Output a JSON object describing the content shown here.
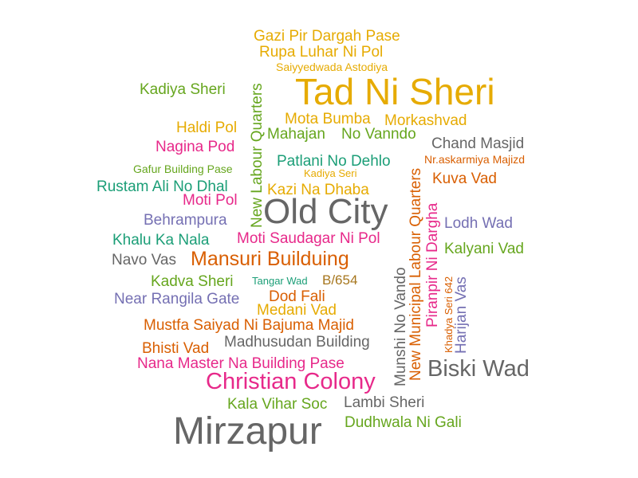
{
  "words": [
    {
      "text": "Gazi Pir Dargah Pase",
      "color": "#e6ab02"
    },
    {
      "text": "Rupa Luhar Ni Pol",
      "color": "#e6ab02"
    },
    {
      "text": "Saiyyedwada Astodiya",
      "color": "#e6ab02"
    },
    {
      "text": "Tad Ni Sheri",
      "color": "#e6ab02"
    },
    {
      "text": "Kadiya Sheri",
      "color": "#66a61e"
    },
    {
      "text": "New Labour Quarters",
      "color": "#66a61e"
    },
    {
      "text": "Mota Bumba",
      "color": "#e6ab02"
    },
    {
      "text": "Morkashvad",
      "color": "#e6ab02"
    },
    {
      "text": "Mahajan",
      "color": "#66a61e"
    },
    {
      "text": "No Vanndo",
      "color": "#66a61e"
    },
    {
      "text": "Haldi Pol",
      "color": "#e6ab02"
    },
    {
      "text": "Chand Masjid",
      "color": "#666666"
    },
    {
      "text": "Nagina Pod",
      "color": "#e7298a"
    },
    {
      "text": "Patlani No Dehlo",
      "color": "#1b9e77"
    },
    {
      "text": "Nr.askarmiya Majizd",
      "color": "#d95f02"
    },
    {
      "text": "Gafur Building Pase",
      "color": "#66a61e"
    },
    {
      "text": "Kadiya Seri",
      "color": "#e6ab02"
    },
    {
      "text": "Rustam Ali No Dhal",
      "color": "#1b9e77"
    },
    {
      "text": "Kazi Na Dhaba",
      "color": "#e6ab02"
    },
    {
      "text": "Kuva Vad",
      "color": "#d95f02"
    },
    {
      "text": "New Municipal Labour Quarters",
      "color": "#d95f02"
    },
    {
      "text": "Piranpir Ni Dargha",
      "color": "#e7298a"
    },
    {
      "text": "Moti Pol",
      "color": "#e7298a"
    },
    {
      "text": "Old City",
      "color": "#666666"
    },
    {
      "text": "Behrampura",
      "color": "#7570b3"
    },
    {
      "text": "Lodh Wad",
      "color": "#7570b3"
    },
    {
      "text": "Khalu Ka Nala",
      "color": "#1b9e77"
    },
    {
      "text": "Moti Saudagar Ni Pol",
      "color": "#e7298a"
    },
    {
      "text": "Kalyani Vad",
      "color": "#66a61e"
    },
    {
      "text": "Navo Vas",
      "color": "#666666"
    },
    {
      "text": "Mansuri Builduing",
      "color": "#d95f02"
    },
    {
      "text": "Munshi No Vando",
      "color": "#666666"
    },
    {
      "text": "Khadya Seri 642",
      "color": "#d95f02"
    },
    {
      "text": "Harijan Vas",
      "color": "#7570b3"
    },
    {
      "text": "Kadva Sheri",
      "color": "#66a61e"
    },
    {
      "text": "Tangar Wad",
      "color": "#1b9e77"
    },
    {
      "text": "B/654",
      "color": "#a6761d"
    },
    {
      "text": "Near Rangila Gate",
      "color": "#7570b3"
    },
    {
      "text": "Dod Fali",
      "color": "#d95f02"
    },
    {
      "text": "Medani Vad",
      "color": "#e6ab02"
    },
    {
      "text": "Mustfa Saiyad Ni Bajuma Majid",
      "color": "#d95f02"
    },
    {
      "text": "Bhisti Vad",
      "color": "#d95f02"
    },
    {
      "text": "Madhusudan Building",
      "color": "#666666"
    },
    {
      "text": "Nana Master Na Building Pase",
      "color": "#e7298a"
    },
    {
      "text": "Biski Wad",
      "color": "#666666"
    },
    {
      "text": "Christian Colony",
      "color": "#e7298a"
    },
    {
      "text": "Kala Vihar Soc",
      "color": "#66a61e"
    },
    {
      "text": "Lambi Sheri",
      "color": "#666666"
    },
    {
      "text": "Dudhwala Ni Gali",
      "color": "#66a61e"
    },
    {
      "text": "Mirzapur",
      "color": "#666666"
    }
  ]
}
